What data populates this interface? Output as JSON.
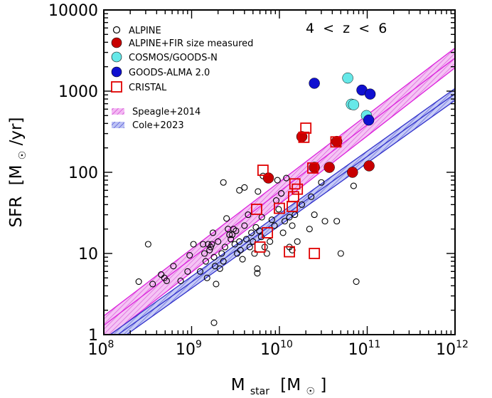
{
  "chart_data": {
    "type": "scatter",
    "xlabel": {
      "main": "M",
      "sub": "star",
      "unit_open": "[M",
      "unit_close": "]"
    },
    "ylabel": {
      "main": "SFR",
      "unit_open": "[M",
      "unit_close": "/yr]"
    },
    "annotation": "4  <  z  <  6",
    "xscale": "log",
    "yscale": "log",
    "xlim": [
      100000000.0,
      1000000000000.0
    ],
    "ylim": [
      1,
      10000
    ],
    "x_ticks": [
      {
        "value": 100000000.0,
        "base": "10",
        "exp": "8"
      },
      {
        "value": 1000000000.0,
        "base": "10",
        "exp": "9"
      },
      {
        "value": 10000000000.0,
        "base": "10",
        "exp": "10"
      },
      {
        "value": 100000000000.0,
        "base": "10",
        "exp": "11"
      },
      {
        "value": 1000000000000.0,
        "base": "10",
        "exp": "12"
      }
    ],
    "y_ticks": [
      {
        "value": 1,
        "label": "1"
      },
      {
        "value": 10,
        "label": "10"
      },
      {
        "value": 100,
        "label": "100"
      },
      {
        "value": 1000,
        "label": "1000"
      },
      {
        "value": 10000,
        "label": "10000"
      }
    ],
    "grid": false,
    "legend_position": "top-left",
    "series": [
      {
        "name": "ALPINE",
        "marker": "open-circle",
        "color": "#000000",
        "points": [
          [
            250000000.0,
            4.5
          ],
          [
            320000000.0,
            13
          ],
          [
            360000000.0,
            4.2
          ],
          [
            450000000.0,
            5.5
          ],
          [
            490000000.0,
            5.0
          ],
          [
            520000000.0,
            4.6
          ],
          [
            620000000.0,
            7.0
          ],
          [
            750000000.0,
            4.6
          ],
          [
            900000000.0,
            6.0
          ],
          [
            950000000.0,
            9.5
          ],
          [
            1050000000.0,
            13
          ],
          [
            1250000000.0,
            6.0
          ],
          [
            1350000000.0,
            13
          ],
          [
            1400000000.0,
            10
          ],
          [
            1450000000.0,
            8.0
          ],
          [
            1500000000.0,
            5.0
          ],
          [
            1550000000.0,
            13
          ],
          [
            1600000000.0,
            11
          ],
          [
            1650000000.0,
            12
          ],
          [
            1700000000.0,
            13
          ],
          [
            1750000000.0,
            18
          ],
          [
            1800000000.0,
            9.0
          ],
          [
            1850000000.0,
            7.0
          ],
          [
            1900000000.0,
            4.2
          ],
          [
            2000000000.0,
            14
          ],
          [
            2100000000.0,
            6.5
          ],
          [
            2200000000.0,
            10
          ],
          [
            2300000000.0,
            8.0
          ],
          [
            2400000000.0,
            12
          ],
          [
            2500000000.0,
            27
          ],
          [
            2600000000.0,
            20
          ],
          [
            2700000000.0,
            17
          ],
          [
            2800000000.0,
            15
          ],
          [
            2900000000.0,
            17
          ],
          [
            3000000000.0,
            20
          ],
          [
            3100000000.0,
            13
          ],
          [
            3200000000.0,
            19
          ],
          [
            3300000000.0,
            10
          ],
          [
            3500000000.0,
            14
          ],
          [
            3600000000.0,
            11
          ],
          [
            3800000000.0,
            8.5
          ],
          [
            4000000000.0,
            22
          ],
          [
            4200000000.0,
            15
          ],
          [
            4400000000.0,
            30
          ],
          [
            4600000000.0,
            12
          ],
          [
            4800000000.0,
            18
          ],
          [
            5000000000.0,
            14
          ],
          [
            5200000000.0,
            10
          ],
          [
            5400000000.0,
            21
          ],
          [
            5600000000.0,
            6.5
          ],
          [
            5600000000.0,
            5.7
          ],
          [
            5900000000.0,
            19
          ],
          [
            6200000000.0,
            16
          ],
          [
            6800000000.0,
            12
          ],
          [
            7200000000.0,
            10
          ],
          [
            7800000000.0,
            14
          ],
          [
            8200000000.0,
            26
          ],
          [
            8800000000.0,
            22
          ],
          [
            9200000000.0,
            45
          ],
          [
            9500000000.0,
            80
          ],
          [
            9800000000.0,
            35
          ],
          [
            10500000000.0,
            55
          ],
          [
            11000000000.0,
            18
          ],
          [
            11500000000.0,
            25
          ],
          [
            12000000000.0,
            85
          ],
          [
            13000000000.0,
            28
          ],
          [
            14000000000.0,
            22
          ],
          [
            15000000000.0,
            30
          ],
          [
            16000000000.0,
            14
          ],
          [
            18000000000.0,
            40
          ],
          [
            22000000000.0,
            20
          ],
          [
            25000000000.0,
            30
          ],
          [
            30000000000.0,
            75
          ],
          [
            33000000000.0,
            25
          ],
          [
            45000000000.0,
            25
          ],
          [
            50000000000.0,
            10
          ],
          [
            70000000000.0,
            68
          ],
          [
            75000000000.0,
            4.5
          ],
          [
            1800000000.0,
            1.4
          ],
          [
            3500000000.0,
            60
          ],
          [
            5700000000.0,
            58
          ],
          [
            6300000000.0,
            28
          ],
          [
            14000000000.0,
            11
          ],
          [
            4000000000.0,
            65
          ],
          [
            2300000000.0,
            75
          ],
          [
            23000000000.0,
            50
          ],
          [
            13000000000.0,
            12
          ],
          [
            6500000000.0,
            90
          ]
        ]
      },
      {
        "name": "ALPINE+FIR size measured",
        "marker": "filled-circle",
        "color": "#c80000",
        "points": [
          [
            7500000000.0,
            85
          ],
          [
            18000000000.0,
            275
          ],
          [
            25000000000.0,
            115
          ],
          [
            37000000000.0,
            115
          ],
          [
            45000000000.0,
            240
          ],
          [
            68000000000.0,
            100
          ],
          [
            105000000000.0,
            120
          ]
        ]
      },
      {
        "name": "COSMOS/GOODS-N",
        "marker": "filled-circle",
        "color": "#66e8e8",
        "points": [
          [
            60000000000.0,
            1450
          ],
          [
            66000000000.0,
            690
          ],
          [
            70000000000.0,
            680
          ],
          [
            98000000000.0,
            500
          ]
        ]
      },
      {
        "name": "GOODS-ALMA 2.0",
        "marker": "filled-circle",
        "color": "#1010d0",
        "points": [
          [
            25000000000.0,
            1250
          ],
          [
            87000000000.0,
            1030
          ],
          [
            108000000000.0,
            920
          ],
          [
            104000000000.0,
            440
          ]
        ]
      },
      {
        "name": "CRISTAL",
        "marker": "open-square",
        "color": "#e00000",
        "points": [
          [
            6500000000.0,
            106
          ],
          [
            19000000000.0,
            270
          ],
          [
            20000000000.0,
            350
          ],
          [
            24000000000.0,
            113
          ],
          [
            44000000000.0,
            237
          ],
          [
            15000000000.0,
            72
          ],
          [
            16000000000.0,
            62
          ],
          [
            14500000000.0,
            50
          ],
          [
            14000000000.0,
            38
          ],
          [
            10000000000.0,
            36
          ],
          [
            5500000000.0,
            35
          ],
          [
            7300000000.0,
            18
          ],
          [
            6000000000.0,
            12
          ],
          [
            13000000000.0,
            10.5
          ],
          [
            25000000000.0,
            10
          ]
        ]
      }
    ],
    "relations": [
      {
        "name": "Speagle+2014",
        "color": "#dd22dd",
        "fill": "#f0a8f0",
        "band": {
          "x": [
            100000000.0,
            1000000000000.0
          ],
          "lower": [
            0.85,
            1940
          ],
          "center": [
            1.3,
            2560
          ],
          "upper": [
            1.7,
            3400
          ]
        }
      },
      {
        "name": "Cole+2023",
        "color": "#3333cc",
        "fill": "#a8b0f0",
        "band": {
          "x": [
            100000000.0,
            1000000000000.0
          ],
          "lower": [
            0.63,
            770
          ],
          "center": [
            0.75,
            930
          ],
          "upper": [
            0.88,
            1080
          ]
        }
      }
    ]
  }
}
